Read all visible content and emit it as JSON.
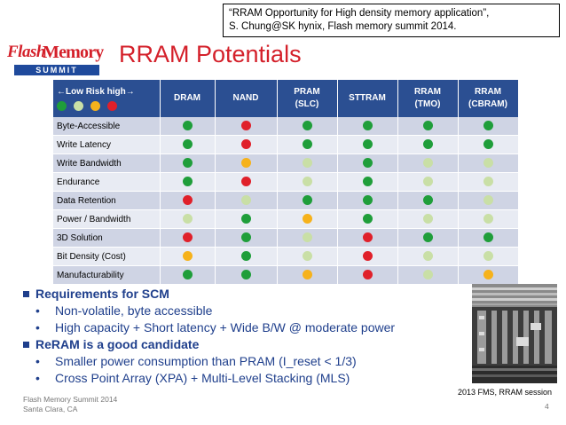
{
  "citation": {
    "line1": "“RRAM Opportunity for High density memory application”,",
    "line2": "S. Chung@SK hynix, Flash memory summit 2014."
  },
  "logo": {
    "flash": "Flash",
    "memory": "Memory",
    "summit": "SUMMIT"
  },
  "title": "RRAM Potentials",
  "table": {
    "risk_header": "←Low  Risk  high→",
    "risk_levels": [
      "green",
      "light-green",
      "yellow",
      "red"
    ],
    "columns": [
      {
        "line1": "DRAM",
        "line2": ""
      },
      {
        "line1": "NAND",
        "line2": ""
      },
      {
        "line1": "PRAM",
        "line2": "(SLC)"
      },
      {
        "line1": "STTRAM",
        "line2": ""
      },
      {
        "line1": "RRAM",
        "line2": "(TMO)"
      },
      {
        "line1": "RRAM",
        "line2": "(CBRAM)"
      }
    ],
    "rows": [
      {
        "label": "Byte-Accessible",
        "ratings": [
          "green",
          "red",
          "green",
          "green",
          "green",
          "green"
        ]
      },
      {
        "label": "Write Latency",
        "ratings": [
          "green",
          "red",
          "green",
          "green",
          "green",
          "green"
        ]
      },
      {
        "label": "Write Bandwidth",
        "ratings": [
          "green",
          "yellow",
          "light-green",
          "green",
          "light-green",
          "light-green"
        ]
      },
      {
        "label": "Endurance",
        "ratings": [
          "green",
          "red",
          "light-green",
          "green",
          "light-green",
          "light-green"
        ]
      },
      {
        "label": "Data Retention",
        "ratings": [
          "red",
          "light-green",
          "green",
          "green",
          "green",
          "light-green"
        ]
      },
      {
        "label": "Power / Bandwidth",
        "ratings": [
          "light-green",
          "green",
          "yellow",
          "green",
          "light-green",
          "light-green"
        ]
      },
      {
        "label": "3D Solution",
        "ratings": [
          "red",
          "green",
          "light-green",
          "red",
          "green",
          "green"
        ]
      },
      {
        "label": "Bit Density (Cost)",
        "ratings": [
          "yellow",
          "green",
          "light-green",
          "red",
          "light-green",
          "light-green"
        ]
      },
      {
        "label": "Manufacturability",
        "ratings": [
          "green",
          "green",
          "yellow",
          "red",
          "light-green",
          "yellow"
        ]
      }
    ]
  },
  "colors": {
    "green": "#1f9e3a",
    "light-green": "#c9dfa6",
    "yellow": "#f6b21b",
    "red": "#e0202a",
    "header_bg": "#2b4f92",
    "bullet_text": "#1f3f8c",
    "title": "#d4202a"
  },
  "bullets": [
    {
      "text": "Requirements for SCM",
      "subs": [
        "Non-volatile, byte accessible",
        "High capacity + Short latency + Wide B/W @ moderate power"
      ]
    },
    {
      "text": "ReRAM is a good candidate",
      "subs": [
        "Smaller power consumption than PRAM (I_reset < 1/3)",
        "Cross Point Array (XPA) + Multi-Level Stacking (MLS)"
      ]
    }
  ],
  "photo_caption": "2013 FMS, RRAM session",
  "footer": {
    "line1": "Flash Memory Summit 2014",
    "line2": "Santa Clara, CA"
  },
  "page_number": "4"
}
